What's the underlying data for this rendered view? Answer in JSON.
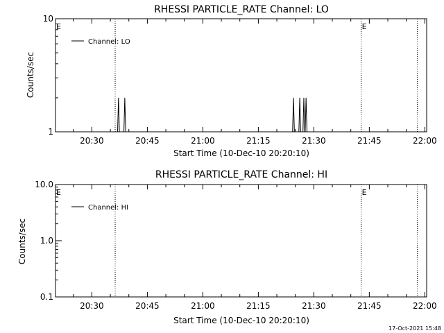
{
  "footer": {
    "timestamp": "17-Oct-2021 15:48"
  },
  "chart_data": [
    {
      "type": "line",
      "title": "RHESSI PARTICLE_RATE Channel: LO",
      "xlabel": "Start Time (10-Dec-10 20:20:10)",
      "ylabel": "Counts/sec",
      "yscale": "log",
      "ylim": [
        1,
        10
      ],
      "xlim_minutes": [
        20.17,
        120.5
      ],
      "x_ticks": [
        {
          "minute": 30,
          "label": "20:30"
        },
        {
          "minute": 45,
          "label": "20:45"
        },
        {
          "minute": 60,
          "label": "21:00"
        },
        {
          "minute": 75,
          "label": "21:15"
        },
        {
          "minute": 90,
          "label": "21:30"
        },
        {
          "minute": 105,
          "label": "21:45"
        },
        {
          "minute": 120,
          "label": "22:00"
        }
      ],
      "y_ticks": [
        {
          "value": 1,
          "label": "1"
        },
        {
          "value": 10,
          "label": "10"
        }
      ],
      "legend": {
        "position": "top-left",
        "entries": [
          "Channel: LO"
        ]
      },
      "event_lines": [
        {
          "minute": 36.3,
          "mark": "E"
        },
        {
          "minute": 102.8,
          "mark": "E"
        },
        {
          "minute": 118.0,
          "mark": ""
        }
      ],
      "series": [
        {
          "name": "Channel: LO",
          "spikes": [
            {
              "minute": 37.2,
              "value": 2
            },
            {
              "minute": 38.9,
              "value": 2
            },
            {
              "minute": 84.5,
              "value": 2
            },
            {
              "minute": 86.2,
              "value": 2
            },
            {
              "minute": 87.3,
              "value": 2
            },
            {
              "minute": 87.9,
              "value": 2
            }
          ]
        }
      ]
    },
    {
      "type": "line",
      "title": "RHESSI PARTICLE_RATE Channel: HI",
      "xlabel": "Start Time (10-Dec-10 20:20:10)",
      "ylabel": "Counts/sec",
      "yscale": "log",
      "ylim": [
        0.1,
        10
      ],
      "xlim_minutes": [
        20.17,
        120.5
      ],
      "x_ticks": [
        {
          "minute": 30,
          "label": "20:30"
        },
        {
          "minute": 45,
          "label": "20:45"
        },
        {
          "minute": 60,
          "label": "21:00"
        },
        {
          "minute": 75,
          "label": "21:15"
        },
        {
          "minute": 90,
          "label": "21:30"
        },
        {
          "minute": 105,
          "label": "21:45"
        },
        {
          "minute": 120,
          "label": "22:00"
        }
      ],
      "y_ticks": [
        {
          "value": 0.1,
          "label": "0.1"
        },
        {
          "value": 1,
          "label": "1.0"
        },
        {
          "value": 10,
          "label": "10.0"
        }
      ],
      "legend": {
        "position": "top-left",
        "entries": [
          "Channel: HI"
        ]
      },
      "event_lines": [
        {
          "minute": 36.3,
          "mark": "E"
        },
        {
          "minute": 102.8,
          "mark": "E"
        },
        {
          "minute": 118.0,
          "mark": ""
        }
      ],
      "series": [
        {
          "name": "Channel: HI",
          "spikes": []
        }
      ]
    }
  ]
}
